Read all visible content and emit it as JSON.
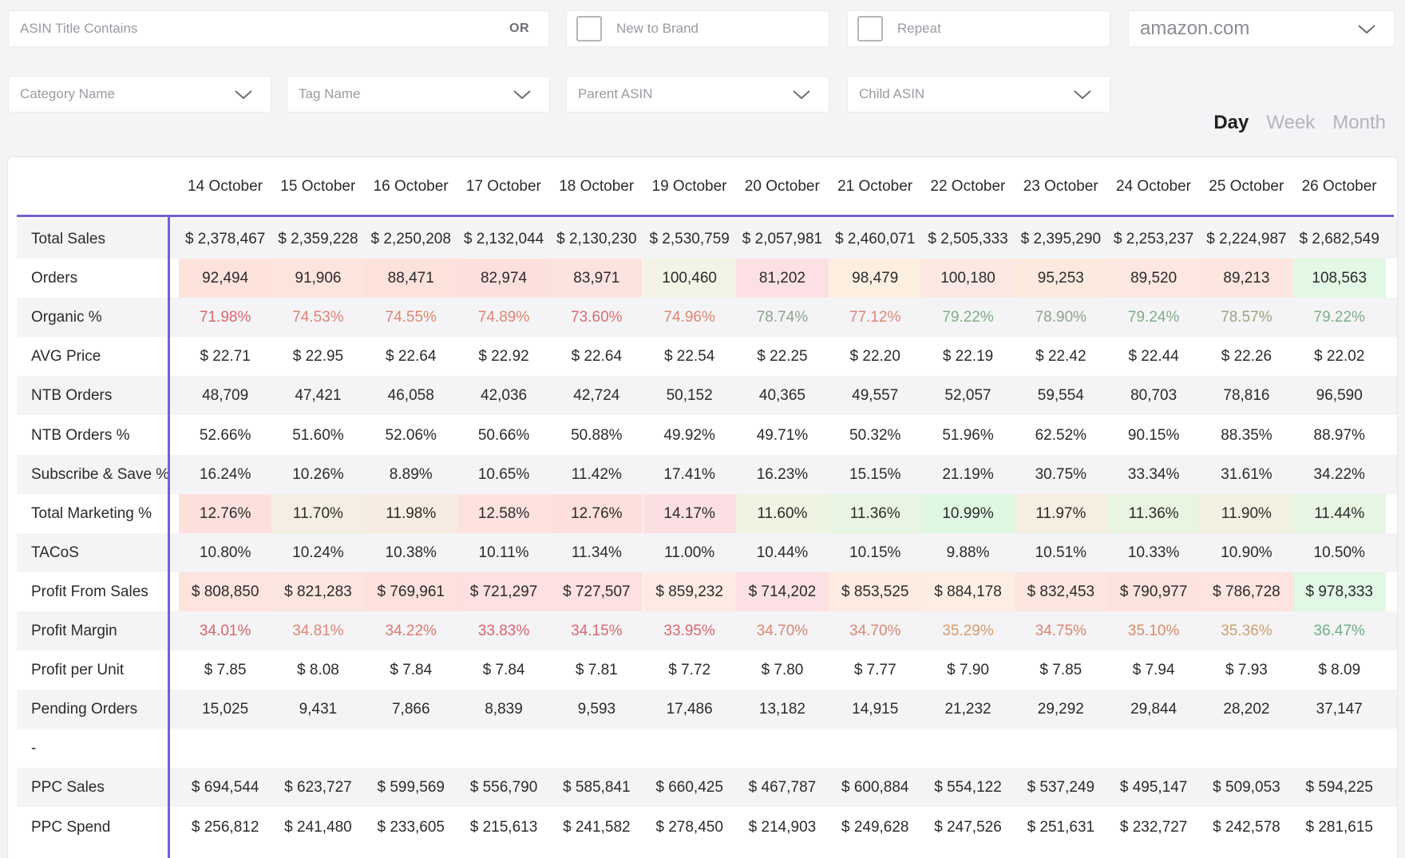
{
  "filters": {
    "asin_title_placeholder": "ASIN Title Contains",
    "or_label": "OR",
    "new_to_brand_label": "New to Brand",
    "repeat_label": "Repeat",
    "marketplace_value": "amazon.com",
    "category_placeholder": "Category Name",
    "tag_placeholder": "Tag Name",
    "parent_asin_placeholder": "Parent ASIN",
    "child_asin_placeholder": "Child ASIN"
  },
  "periods": {
    "day": "Day",
    "week": "Week",
    "month": "Month",
    "active": "day"
  },
  "table": {
    "columns": [
      "14 October",
      "15 October",
      "16 October",
      "17 October",
      "18 October",
      "19 October",
      "20 October",
      "21 October",
      "22 October",
      "23 October",
      "24 October",
      "25 October",
      "26 October"
    ],
    "rows": [
      {
        "label": "Total Sales",
        "values": [
          "$ 2,378,467",
          "$ 2,359,228",
          "$ 2,250,208",
          "$ 2,132,044",
          "$ 2,130,230",
          "$ 2,530,759",
          "$ 2,057,981",
          "$ 2,460,071",
          "$ 2,505,333",
          "$ 2,395,290",
          "$ 2,253,237",
          "$ 2,224,987",
          "$ 2,682,549"
        ]
      },
      {
        "label": "Orders",
        "values": [
          "92,494",
          "91,906",
          "88,471",
          "82,974",
          "83,971",
          "100,460",
          "81,202",
          "98,479",
          "100,180",
          "95,253",
          "89,520",
          "89,213",
          "108,563"
        ],
        "bg": [
          "#fde3dc",
          "#fde4dc",
          "#fde2dc",
          "#fde0dd",
          "#fde3e0",
          "#f3f3e6",
          "#fde0e3",
          "#fcefe0",
          "#fde8e3",
          "#fdeadf",
          "#fde7e0",
          "#fde6e0",
          "#e2f8e4"
        ]
      },
      {
        "label": "Organic %",
        "values": [
          "71.98%",
          "74.53%",
          "74.55%",
          "74.89%",
          "73.60%",
          "74.96%",
          "78.74%",
          "77.12%",
          "79.22%",
          "78.90%",
          "79.24%",
          "78.57%",
          "79.22%"
        ],
        "fg": [
          "#d9676e",
          "#e28271",
          "#e0856c",
          "#e0856e",
          "#d96c70",
          "#e0866f",
          "#8da38c",
          "#dc8877",
          "#7fae84",
          "#8da48e",
          "#7fae84",
          "#9ea37f",
          "#7fae84"
        ]
      },
      {
        "label": "AVG Price",
        "values": [
          "$ 22.71",
          "$ 22.95",
          "$ 22.64",
          "$ 22.92",
          "$ 22.64",
          "$ 22.54",
          "$ 22.25",
          "$ 22.20",
          "$ 22.19",
          "$ 22.42",
          "$ 22.44",
          "$ 22.26",
          "$ 22.02"
        ]
      },
      {
        "label": "NTB Orders",
        "values": [
          "48,709",
          "47,421",
          "46,058",
          "42,036",
          "42,724",
          "50,152",
          "40,365",
          "49,557",
          "52,057",
          "59,554",
          "80,703",
          "78,816",
          "96,590"
        ]
      },
      {
        "label": "NTB Orders %",
        "values": [
          "52.66%",
          "51.60%",
          "52.06%",
          "50.66%",
          "50.88%",
          "49.92%",
          "49.71%",
          "50.32%",
          "51.96%",
          "62.52%",
          "90.15%",
          "88.35%",
          "88.97%"
        ]
      },
      {
        "label": "Subscribe & Save %",
        "values": [
          "16.24%",
          "10.26%",
          "8.89%",
          "10.65%",
          "11.42%",
          "17.41%",
          "16.23%",
          "15.15%",
          "21.19%",
          "30.75%",
          "33.34%",
          "31.61%",
          "34.22%"
        ]
      },
      {
        "label": "Total Marketing %",
        "values": [
          "12.76%",
          "11.70%",
          "11.98%",
          "12.58%",
          "12.76%",
          "14.17%",
          "11.60%",
          "11.36%",
          "10.99%",
          "11.97%",
          "11.36%",
          "11.90%",
          "11.44%"
        ],
        "bg": [
          "#fde0dc",
          "#f4efe2",
          "#f6ece1",
          "#fde2de",
          "#fde0dc",
          "#fcdfe3",
          "#eef3e2",
          "#e8f5e2",
          "#dff8e2",
          "#f6eee1",
          "#e9f4e1",
          "#f2f0e1",
          "#e6f6e3"
        ]
      },
      {
        "label": "TACoS",
        "values": [
          "10.80%",
          "10.24%",
          "10.38%",
          "10.11%",
          "11.34%",
          "11.00%",
          "10.44%",
          "10.15%",
          "9.88%",
          "10.51%",
          "10.33%",
          "10.90%",
          "10.50%"
        ]
      },
      {
        "label": "Profit From Sales",
        "values": [
          "$ 808,850",
          "$ 821,283",
          "$ 769,961",
          "$ 721,297",
          "$ 727,507",
          "$ 859,232",
          "$ 714,202",
          "$ 853,525",
          "$ 884,178",
          "$ 832,453",
          "$ 790,977",
          "$ 786,728",
          "$ 978,333"
        ],
        "bg": [
          "#fde4de",
          "#fde5df",
          "#fde1dd",
          "#fde0df",
          "#fde0df",
          "#fdeae2",
          "#fde0e3",
          "#fdeae1",
          "#fdeee4",
          "#fde6df",
          "#fde3de",
          "#fde4df",
          "#e0f8e4"
        ]
      },
      {
        "label": "Profit Margin",
        "values": [
          "34.01%",
          "34.81%",
          "34.22%",
          "33.83%",
          "34.15%",
          "33.95%",
          "34.70%",
          "34.70%",
          "35.29%",
          "34.75%",
          "35.10%",
          "35.36%",
          "36.47%"
        ],
        "fg": [
          "#d9656c",
          "#e0866f",
          "#dc7a6f",
          "#d9646d",
          "#d96a70",
          "#d9666f",
          "#dd8670",
          "#dd8670",
          "#d69a6a",
          "#dd8670",
          "#d88a66",
          "#cca06e",
          "#6fae88"
        ]
      },
      {
        "label": "Profit per Unit",
        "values": [
          "$ 7.85",
          "$ 8.08",
          "$ 7.84",
          "$ 7.84",
          "$ 7.81",
          "$ 7.72",
          "$ 7.80",
          "$ 7.77",
          "$ 7.90",
          "$ 7.85",
          "$ 7.94",
          "$ 7.93",
          "$ 8.09"
        ]
      },
      {
        "label": "Pending Orders",
        "values": [
          "15,025",
          "9,431",
          "7,866",
          "8,839",
          "9,593",
          "17,486",
          "13,182",
          "14,915",
          "21,232",
          "29,292",
          "29,844",
          "28,202",
          "37,147"
        ]
      },
      {
        "label": "-",
        "values": [
          "",
          "",
          "",
          "",
          "",
          "",
          "",
          "",
          "",
          "",
          "",
          "",
          ""
        ]
      },
      {
        "label": "PPC Sales",
        "values": [
          "$ 694,544",
          "$ 623,727",
          "$ 599,569",
          "$ 556,790",
          "$ 585,841",
          "$ 660,425",
          "$ 467,787",
          "$ 600,884",
          "$ 554,122",
          "$ 537,249",
          "$ 495,147",
          "$ 509,053",
          "$ 594,225"
        ]
      },
      {
        "label": "PPC Spend",
        "values": [
          "$ 256,812",
          "$ 241,480",
          "$ 233,605",
          "$ 215,613",
          "$ 241,582",
          "$ 278,450",
          "$ 214,903",
          "$ 249,628",
          "$ 247,526",
          "$ 251,631",
          "$ 232,727",
          "$ 242,578",
          "$ 281,615"
        ]
      }
    ]
  }
}
